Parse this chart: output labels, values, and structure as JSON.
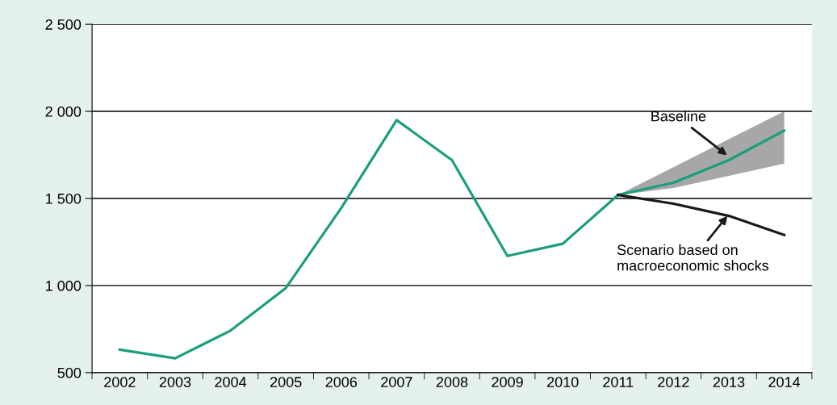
{
  "chart_data": {
    "type": "line",
    "categories": [
      "2002",
      "2003",
      "2004",
      "2005",
      "2006",
      "2007",
      "2008",
      "2009",
      "2010",
      "2011",
      "2012",
      "2013",
      "2014"
    ],
    "series": [
      {
        "color": "#1a9e7e",
        "values": [
          632,
          582,
          741,
          986,
          1445,
          1950,
          1720,
          1170,
          1240,
          1520,
          null,
          null,
          null
        ]
      },
      {
        "color": "#1a9e7e",
        "values": [
          null,
          null,
          null,
          null,
          null,
          null,
          null,
          null,
          null,
          1520,
          1590,
          1720,
          1890
        ],
        "lower": [
          null,
          null,
          null,
          null,
          null,
          null,
          null,
          null,
          null,
          1520,
          1560,
          1630,
          1700
        ],
        "upper": [
          null,
          null,
          null,
          null,
          null,
          null,
          null,
          null,
          null,
          1520,
          1680,
          1840,
          2000
        ]
      },
      {
        "color": "#1a1a1a",
        "values": [
          null,
          null,
          null,
          null,
          null,
          null,
          null,
          null,
          null,
          1520,
          1470,
          1400,
          1290
        ]
      }
    ],
    "ylim": [
      500,
      2500
    ],
    "yticks": [
      {
        "value": 500,
        "label": "500"
      },
      {
        "value": 1000,
        "label": "1 000"
      },
      {
        "value": 1500,
        "label": "1 500"
      },
      {
        "value": 2000,
        "label": "2 000"
      },
      {
        "value": 2500,
        "label": "2 500"
      }
    ],
    "grid": "y",
    "annotations": [
      {
        "text": "Baseline",
        "x": "2013",
        "y": 1740
      },
      {
        "text": "Scenario based on\nmacroeconomic shocks",
        "x": "2013",
        "y": 1410
      }
    ]
  }
}
